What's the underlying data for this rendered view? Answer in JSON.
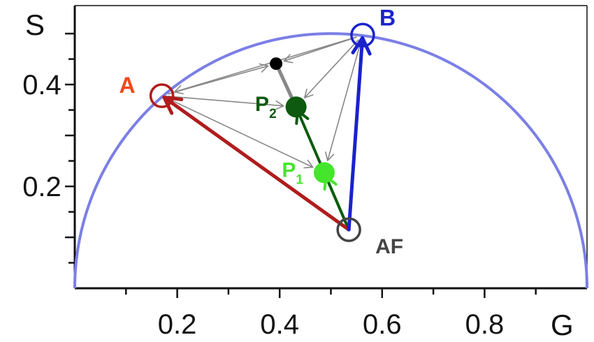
{
  "chart_data": {
    "type": "scatter",
    "xlabel": "G",
    "ylabel": "S",
    "xlim": [
      0,
      1
    ],
    "ylim": [
      0,
      0.5
    ],
    "x_ticks": [
      "0.2",
      "0.4",
      "0.6",
      "0.8"
    ],
    "y_ticks": [
      "0.2",
      "0.4"
    ],
    "boundary": {
      "type": "semicircle",
      "center": [
        0.5,
        0
      ],
      "radius": 0.5,
      "color": "#7b7fe6"
    },
    "points": [
      {
        "key": "AF",
        "label": "AF",
        "sub": "",
        "x": 0.535,
        "y": 0.115,
        "style": "hollow",
        "color": "#444444",
        "label_color": "#444444"
      },
      {
        "key": "A",
        "label": "A",
        "sub": "",
        "x": 0.17,
        "y": 0.378,
        "style": "hollow",
        "color": "#b01c1c",
        "label_color": "#ee4a1c"
      },
      {
        "key": "B",
        "label": "B",
        "sub": "",
        "x": 0.562,
        "y": 0.497,
        "style": "hollow",
        "color": "#1a22cc",
        "label_color": "#1a22cc"
      },
      {
        "key": "P1",
        "label": "P",
        "sub": "1",
        "x": 0.487,
        "y": 0.227,
        "style": "filled",
        "color": "#44e62b",
        "label_color": "#44e62b"
      },
      {
        "key": "P2",
        "label": "P",
        "sub": "2",
        "x": 0.432,
        "y": 0.356,
        "style": "filled",
        "color": "#0e5a10",
        "label_color": "#0e5a10"
      },
      {
        "key": "C",
        "label": "",
        "sub": "",
        "x": 0.393,
        "y": 0.441,
        "style": "filled-small",
        "color": "#000000",
        "label_color": "#000000"
      }
    ],
    "vectors": [
      {
        "from": "AF",
        "to": "A",
        "color": "#b01c1c",
        "width": "thick"
      },
      {
        "from": "AF",
        "to": "B",
        "color": "#1a22cc",
        "width": "thick"
      },
      {
        "from": "AF",
        "to": "P1",
        "color": "#44e62b",
        "width": "medium"
      },
      {
        "from": "AF",
        "to": "P2",
        "color": "#0e5a10",
        "width": "medium"
      },
      {
        "from": "A",
        "to": "P1",
        "color": "#888888",
        "width": "thin"
      },
      {
        "from": "B",
        "to": "P1",
        "color": "#888888",
        "width": "thin"
      },
      {
        "from": "A",
        "to": "P2",
        "color": "#888888",
        "width": "thin"
      },
      {
        "from": "B",
        "to": "P2",
        "color": "#888888",
        "width": "thin"
      },
      {
        "from": "A",
        "to": "C",
        "color": "#888888",
        "width": "thin"
      },
      {
        "from": "B",
        "to": "C",
        "color": "#888888",
        "width": "thin"
      },
      {
        "from": "B",
        "to": "A",
        "color": "#888888",
        "width": "thin"
      }
    ],
    "segments": [
      {
        "from": "C",
        "to": "P2",
        "color": "#888888",
        "width": "thick"
      }
    ]
  }
}
